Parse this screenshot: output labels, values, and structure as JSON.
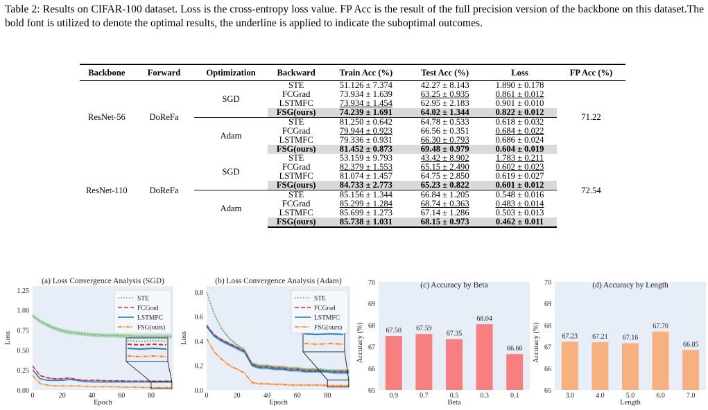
{
  "caption": "Table 2: Results on CIFAR-100 dataset. Loss is the cross-entropy loss value. FP Acc is the result of the full precision version of the backbone on this dataset.The bold font is utilized to denote the optimal results, the underline is applied to indicate the suboptimal outcomes.",
  "table": {
    "headers": [
      "Backbone",
      "Forward",
      "Optimization",
      "Backward",
      "Train Acc (%)",
      "Test Acc (%)",
      "Loss",
      "FP Acc (%)"
    ],
    "groups": [
      {
        "backbone": "ResNet-56",
        "forward": "DoReFa",
        "fp_acc": "71.22",
        "opts": [
          {
            "name": "SGD",
            "rows": [
              {
                "backward": "STE",
                "train": "51.126 ± 7.374",
                "test": "42.27 ± 8.143",
                "loss": "1.890 ± 0.178"
              },
              {
                "backward": "FCGrad",
                "train": "73.934 ± 1.639",
                "test": "63.25 ± 0.935",
                "loss": "0.861 ± 0.012"
              },
              {
                "backward": "LSTMFC",
                "train": "73.934 ± 1.454",
                "test": "62.95 ± 2.183",
                "loss": "0.901 ± 0.010"
              },
              {
                "backward": "FSG(ours)",
                "train": "74.239 ± 1.691",
                "test": "64.02 ± 1.344",
                "loss": "0.822 ± 0.012"
              }
            ]
          },
          {
            "name": "Adam",
            "rows": [
              {
                "backward": "STE",
                "train": "81.250 ± 0.642",
                "test": "64.78 ± 0.533",
                "loss": "0.618 ± 0.032"
              },
              {
                "backward": "FCGrad",
                "train": "79.944 ± 0.923",
                "test": "66.56 ± 0.351",
                "loss": "0.684 ± 0.022"
              },
              {
                "backward": "LSTMFC",
                "train": "79.336 ± 0.931",
                "test": "66.30 ± 0.793",
                "loss": "0.686 ± 0.024"
              },
              {
                "backward": "FSG(ours)",
                "train": "81.452 ± 0.873",
                "test": "69.48 ± 0.979",
                "loss": "0.604 ± 0.019"
              }
            ]
          }
        ]
      },
      {
        "backbone": "ResNet-110",
        "forward": "DoReFa",
        "fp_acc": "72.54",
        "opts": [
          {
            "name": "SGD",
            "rows": [
              {
                "backward": "STE",
                "train": "53.159 ± 9.793",
                "test": "43.42 ± 8.902",
                "loss": "1.783 ± 0.211"
              },
              {
                "backward": "FCGrad",
                "train": "82.379 ± 1.553",
                "test": "65.15 ± 2.490",
                "loss": "0.602 ± 0.023"
              },
              {
                "backward": "LSTMFC",
                "train": "81.074 ± 1.457",
                "test": "64.75 ± 2.850",
                "loss": "0.619 ± 0.027"
              },
              {
                "backward": "FSG(ours)",
                "train": "84.733 ± 2.773",
                "test": "65.23 ± 0.822",
                "loss": "0.601 ± 0.012"
              }
            ]
          },
          {
            "name": "Adam",
            "rows": [
              {
                "backward": "STE",
                "train": "85.156 ± 1.344",
                "test": "66.84 ± 1.205",
                "loss": "0.548 ± 0.016"
              },
              {
                "backward": "FCGrad",
                "train": "85.299 ± 1.284",
                "test": "68.74 ± 0.363",
                "loss": "0.483 ± 0.014"
              },
              {
                "backward": "LSTMFC",
                "train": "85.699 ± 1.273",
                "test": "67.14 ± 1.286",
                "loss": "0.503 ± 0.013"
              },
              {
                "backward": "FSG(ours)",
                "train": "85.738 ± 1.031",
                "test": "68.15 ± 0.973",
                "loss": "0.462 ± 0.011"
              }
            ]
          }
        ]
      }
    ]
  },
  "chart_data": [
    {
      "type": "line",
      "title": "(a) Loss Convergence Analysis (SGD)",
      "xlabel": "Epoch",
      "ylabel": "Loss",
      "xlim": [
        0,
        95
      ],
      "ylim": [
        0,
        1.3
      ],
      "xticks": [
        "0",
        "20",
        "40",
        "60",
        "80"
      ],
      "yticks": [
        "0.00",
        "0.25",
        "0.50",
        "0.75",
        "1.00",
        "1.25"
      ],
      "grid": false,
      "legend": "top-right",
      "inset": true,
      "x": [
        0,
        5,
        10,
        15,
        20,
        25,
        30,
        35,
        40,
        45,
        50,
        55,
        60,
        65,
        70,
        75,
        80,
        85,
        90,
        94
      ],
      "series": [
        {
          "name": "STE",
          "color": "#4aa64a",
          "style": "dotted",
          "band": 0.025,
          "values": [
            0.93,
            0.86,
            0.81,
            0.77,
            0.74,
            0.72,
            0.71,
            0.7,
            0.69,
            0.685,
            0.68,
            0.68,
            0.675,
            0.675,
            0.67,
            0.67,
            0.67,
            0.67,
            0.67,
            0.67
          ]
        },
        {
          "name": "FCGrad",
          "color": "#d62728",
          "style": "dashed",
          "band": 0.008,
          "values": [
            0.3,
            0.18,
            0.15,
            0.14,
            0.14,
            0.15,
            0.13,
            0.12,
            0.12,
            0.12,
            0.115,
            0.115,
            0.115,
            0.11,
            0.11,
            0.11,
            0.11,
            0.11,
            0.11,
            0.11
          ]
        },
        {
          "name": "LSTMFC",
          "color": "#1f77b4",
          "style": "solid",
          "band": 0.008,
          "values": [
            0.25,
            0.14,
            0.12,
            0.12,
            0.12,
            0.13,
            0.12,
            0.105,
            0.1,
            0.1,
            0.1,
            0.1,
            0.1,
            0.1,
            0.1,
            0.1,
            0.1,
            0.1,
            0.1,
            0.1
          ]
        },
        {
          "name": "FSG(ours)",
          "color": "#ff7f0e",
          "style": "dashdot",
          "band": 0.006,
          "values": [
            0.18,
            0.08,
            0.06,
            0.05,
            0.05,
            0.05,
            0.05,
            0.045,
            0.04,
            0.04,
            0.04,
            0.04,
            0.035,
            0.035,
            0.035,
            0.03,
            0.03,
            0.03,
            0.03,
            0.03
          ]
        }
      ]
    },
    {
      "type": "line",
      "title": "(b) Loss Convergence Analysis (Adam)",
      "xlabel": "Epoch",
      "ylabel": "Loss",
      "xlim": [
        0,
        95
      ],
      "ylim": [
        0,
        0.85
      ],
      "xticks": [
        "0",
        "20",
        "40",
        "60",
        "80"
      ],
      "yticks": [
        "0.0",
        "0.2",
        "0.4",
        "0.6",
        "0.8"
      ],
      "grid": false,
      "legend": "top-right",
      "inset": true,
      "x": [
        0,
        5,
        10,
        15,
        20,
        25,
        30,
        35,
        40,
        45,
        50,
        55,
        60,
        65,
        70,
        75,
        80,
        85,
        90,
        94
      ],
      "series": [
        {
          "name": "STE",
          "color": "#4aa64a",
          "style": "dotted",
          "band": 0.01,
          "values": [
            0.8,
            0.62,
            0.5,
            0.42,
            0.37,
            0.33,
            0.22,
            0.2,
            0.2,
            0.19,
            0.19,
            0.18,
            0.18,
            0.17,
            0.17,
            0.17,
            0.16,
            0.16,
            0.16,
            0.16
          ]
        },
        {
          "name": "FCGrad",
          "color": "#d62728",
          "style": "dashed",
          "band": 0.01,
          "values": [
            0.53,
            0.45,
            0.41,
            0.38,
            0.35,
            0.32,
            0.21,
            0.19,
            0.19,
            0.18,
            0.18,
            0.17,
            0.17,
            0.16,
            0.16,
            0.16,
            0.15,
            0.15,
            0.15,
            0.15
          ]
        },
        {
          "name": "LSTMFC",
          "color": "#1f77b4",
          "style": "solid",
          "band": 0.012,
          "values": [
            0.52,
            0.44,
            0.4,
            0.37,
            0.34,
            0.31,
            0.2,
            0.18,
            0.18,
            0.17,
            0.17,
            0.16,
            0.16,
            0.15,
            0.15,
            0.15,
            0.15,
            0.14,
            0.14,
            0.14
          ]
        },
        {
          "name": "FSG(ours)",
          "color": "#ff7f0e",
          "style": "dashdot",
          "band": 0.008,
          "values": [
            0.42,
            0.31,
            0.25,
            0.2,
            0.17,
            0.14,
            0.06,
            0.05,
            0.05,
            0.045,
            0.045,
            0.04,
            0.04,
            0.04,
            0.04,
            0.04,
            0.035,
            0.035,
            0.035,
            0.035
          ]
        }
      ]
    },
    {
      "type": "bar",
      "title": "(c) Accuracy by Beta",
      "xlabel": "Beta",
      "ylabel": "Accuracy (%)",
      "ylim": [
        65,
        70
      ],
      "yticks": [
        "65",
        "66",
        "67",
        "68",
        "69",
        "70"
      ],
      "color": "#f77f7f",
      "categories": [
        "0.9",
        "0.7",
        "0.5",
        "0.3",
        "0.1"
      ],
      "values": [
        67.5,
        67.59,
        67.35,
        68.04,
        66.66
      ],
      "labels": [
        "67.50",
        "67.59",
        "67.35",
        "68.04",
        "66.66"
      ]
    },
    {
      "type": "bar",
      "title": "(d) Accuracy by Length",
      "xlabel": "Length",
      "ylabel": "Accuracy (%)",
      "ylim": [
        65,
        70
      ],
      "yticks": [
        "65",
        "66",
        "67",
        "68",
        "69",
        "70"
      ],
      "color": "#f7b07f",
      "categories": [
        "3.0",
        "4.0",
        "5.0",
        "6.0",
        "7.0"
      ],
      "values": [
        67.23,
        67.21,
        67.16,
        67.7,
        66.85
      ],
      "labels": [
        "67.23",
        "67.21",
        "67.16",
        "67.70",
        "66.85"
      ]
    }
  ]
}
